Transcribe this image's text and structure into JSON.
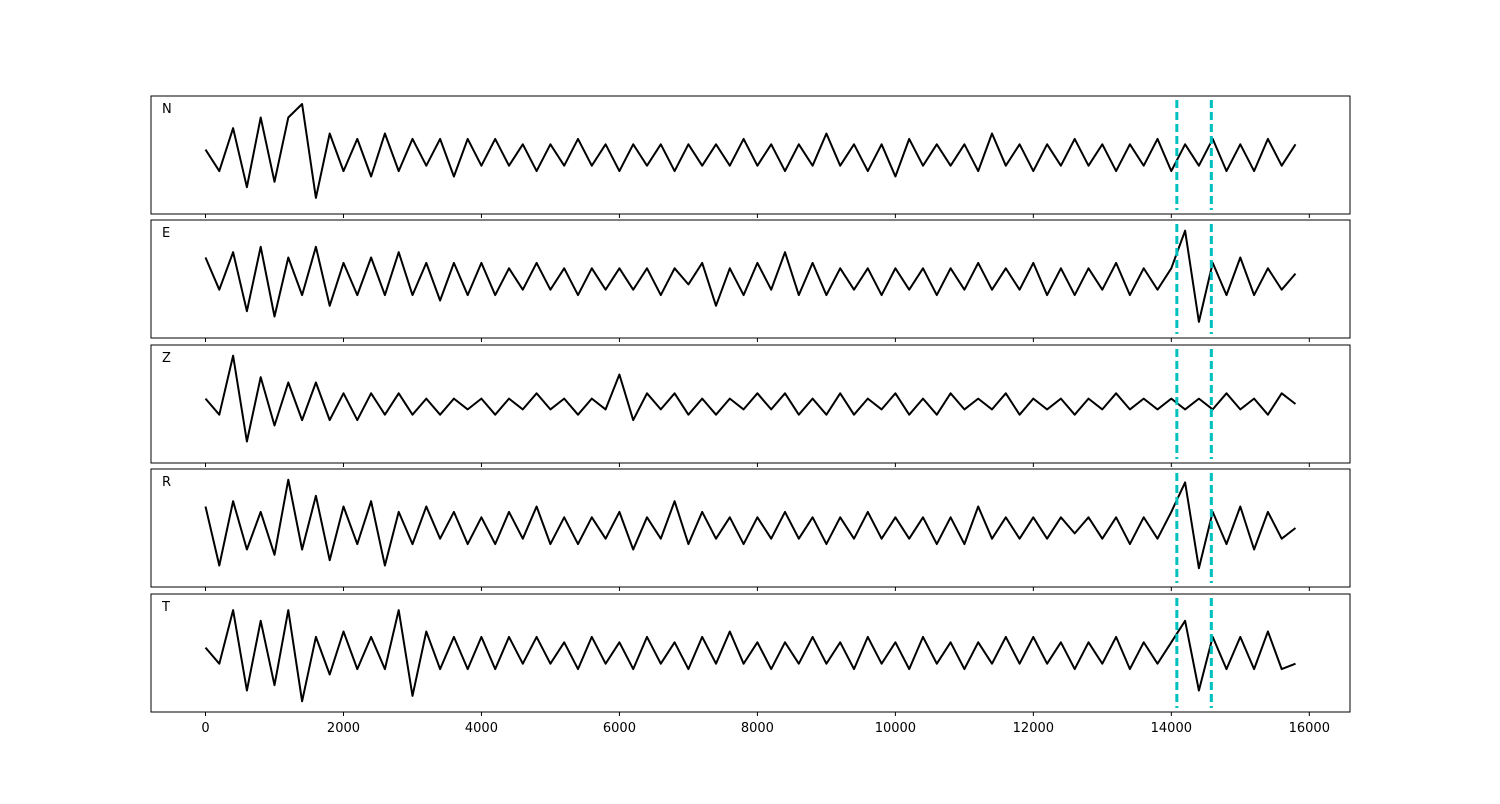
{
  "chart_data": {
    "type": "line",
    "x": [
      0,
      200,
      400,
      600,
      800,
      1000,
      1200,
      1400,
      1600,
      1800,
      2000,
      2200,
      2400,
      2600,
      2800,
      3000,
      3200,
      3400,
      3600,
      3800,
      4000,
      4200,
      4400,
      4600,
      4800,
      5000,
      5200,
      5400,
      5600,
      5800,
      6000,
      6200,
      6400,
      6600,
      6800,
      7000,
      7200,
      7400,
      7600,
      7800,
      8000,
      8200,
      8400,
      8600,
      8800,
      9000,
      9200,
      9400,
      9600,
      9800,
      10000,
      10200,
      10400,
      10600,
      10800,
      11000,
      11200,
      11400,
      11600,
      11800,
      12000,
      12200,
      12400,
      12600,
      12800,
      13000,
      13200,
      13400,
      13600,
      13800,
      14000,
      14200,
      14400,
      14600,
      14800,
      15000,
      15200,
      15400,
      15600,
      15800
    ],
    "series": [
      {
        "name": "N",
        "color": "#000000",
        "values": [
          0.1,
          -0.3,
          0.5,
          -0.6,
          0.7,
          -0.5,
          0.7,
          0.95,
          -0.8,
          0.4,
          -0.3,
          0.3,
          -0.4,
          0.4,
          -0.3,
          0.3,
          -0.2,
          0.3,
          -0.4,
          0.3,
          -0.2,
          0.3,
          -0.2,
          0.2,
          -0.3,
          0.2,
          -0.2,
          0.3,
          -0.2,
          0.2,
          -0.3,
          0.2,
          -0.2,
          0.2,
          -0.3,
          0.2,
          -0.2,
          0.2,
          -0.2,
          0.3,
          -0.2,
          0.2,
          -0.3,
          0.2,
          -0.2,
          0.4,
          -0.2,
          0.2,
          -0.3,
          0.2,
          -0.4,
          0.3,
          -0.2,
          0.2,
          -0.2,
          0.2,
          -0.3,
          0.4,
          -0.2,
          0.2,
          -0.3,
          0.2,
          -0.2,
          0.3,
          -0.2,
          0.2,
          -0.3,
          0.2,
          -0.2,
          0.3,
          -0.3,
          0.2,
          -0.2,
          0.3,
          -0.3,
          0.2,
          -0.3,
          0.3,
          -0.2,
          0.2
        ]
      },
      {
        "name": "E",
        "color": "#000000",
        "values": [
          0.4,
          -0.2,
          0.5,
          -0.6,
          0.6,
          -0.7,
          0.4,
          -0.3,
          0.6,
          -0.5,
          0.3,
          -0.3,
          0.4,
          -0.3,
          0.5,
          -0.3,
          0.3,
          -0.4,
          0.3,
          -0.3,
          0.3,
          -0.3,
          0.2,
          -0.2,
          0.3,
          -0.2,
          0.2,
          -0.3,
          0.2,
          -0.2,
          0.2,
          -0.2,
          0.2,
          -0.3,
          0.2,
          -0.1,
          0.3,
          -0.5,
          0.2,
          -0.3,
          0.3,
          -0.2,
          0.5,
          -0.3,
          0.3,
          -0.3,
          0.2,
          -0.2,
          0.2,
          -0.3,
          0.2,
          -0.2,
          0.2,
          -0.3,
          0.2,
          -0.2,
          0.3,
          -0.2,
          0.2,
          -0.2,
          0.3,
          -0.3,
          0.2,
          -0.3,
          0.2,
          -0.2,
          0.3,
          -0.3,
          0.2,
          -0.2,
          0.2,
          0.9,
          -0.8,
          0.3,
          -0.3,
          0.4,
          -0.3,
          0.2,
          -0.2,
          0.1
        ]
      },
      {
        "name": "Z",
        "color": "#000000",
        "values": [
          0.1,
          -0.2,
          0.9,
          -0.7,
          0.5,
          -0.4,
          0.4,
          -0.3,
          0.4,
          -0.3,
          0.2,
          -0.3,
          0.2,
          -0.2,
          0.2,
          -0.2,
          0.1,
          -0.2,
          0.1,
          -0.1,
          0.1,
          -0.2,
          0.1,
          -0.1,
          0.2,
          -0.1,
          0.1,
          -0.2,
          0.1,
          -0.1,
          0.55,
          -0.3,
          0.2,
          -0.1,
          0.2,
          -0.2,
          0.1,
          -0.2,
          0.1,
          -0.1,
          0.2,
          -0.1,
          0.2,
          -0.2,
          0.1,
          -0.2,
          0.2,
          -0.2,
          0.1,
          -0.1,
          0.2,
          -0.2,
          0.1,
          -0.2,
          0.2,
          -0.1,
          0.1,
          -0.1,
          0.2,
          -0.2,
          0.1,
          -0.1,
          0.1,
          -0.2,
          0.1,
          -0.1,
          0.2,
          -0.1,
          0.1,
          -0.1,
          0.1,
          -0.1,
          0.1,
          -0.1,
          0.2,
          -0.1,
          0.1,
          -0.2,
          0.2,
          0.0
        ]
      },
      {
        "name": "R",
        "color": "#000000",
        "values": [
          0.4,
          -0.7,
          0.5,
          -0.4,
          0.3,
          -0.5,
          0.9,
          -0.4,
          0.6,
          -0.6,
          0.4,
          -0.3,
          0.5,
          -0.7,
          0.3,
          -0.3,
          0.4,
          -0.2,
          0.3,
          -0.3,
          0.2,
          -0.3,
          0.3,
          -0.2,
          0.4,
          -0.3,
          0.2,
          -0.3,
          0.2,
          -0.2,
          0.3,
          -0.4,
          0.2,
          -0.2,
          0.5,
          -0.3,
          0.3,
          -0.2,
          0.2,
          -0.3,
          0.2,
          -0.2,
          0.3,
          -0.2,
          0.2,
          -0.3,
          0.2,
          -0.2,
          0.3,
          -0.2,
          0.2,
          -0.2,
          0.2,
          -0.3,
          0.2,
          -0.3,
          0.4,
          -0.2,
          0.2,
          -0.2,
          0.2,
          -0.2,
          0.2,
          -0.1,
          0.2,
          -0.2,
          0.2,
          -0.3,
          0.2,
          -0.2,
          0.3,
          0.85,
          -0.75,
          0.3,
          -0.3,
          0.4,
          -0.4,
          0.3,
          -0.2,
          0.0
        ]
      },
      {
        "name": "T",
        "color": "#000000",
        "values": [
          0.1,
          -0.2,
          0.8,
          -0.7,
          0.6,
          -0.6,
          0.8,
          -0.9,
          0.3,
          -0.4,
          0.4,
          -0.3,
          0.3,
          -0.3,
          0.8,
          -0.8,
          0.4,
          -0.3,
          0.3,
          -0.3,
          0.3,
          -0.3,
          0.3,
          -0.2,
          0.3,
          -0.2,
          0.2,
          -0.3,
          0.3,
          -0.2,
          0.2,
          -0.3,
          0.3,
          -0.2,
          0.2,
          -0.3,
          0.3,
          -0.2,
          0.4,
          -0.2,
          0.2,
          -0.3,
          0.2,
          -0.2,
          0.3,
          -0.2,
          0.2,
          -0.3,
          0.3,
          -0.2,
          0.2,
          -0.3,
          0.3,
          -0.2,
          0.2,
          -0.3,
          0.2,
          -0.2,
          0.3,
          -0.2,
          0.3,
          -0.2,
          0.2,
          -0.3,
          0.2,
          -0.2,
          0.3,
          -0.3,
          0.2,
          -0.2,
          0.2,
          0.6,
          -0.7,
          0.3,
          -0.3,
          0.3,
          -0.3,
          0.4,
          -0.3,
          -0.2
        ]
      }
    ],
    "xlim": [
      -790,
      16590
    ],
    "xticks": [
      0,
      2000,
      4000,
      6000,
      8000,
      10000,
      12000,
      14000,
      16000
    ],
    "ylim": [
      -1.1,
      1.1
    ],
    "vlines": [
      14080,
      14580
    ],
    "vline_color": "#00bfbf"
  }
}
